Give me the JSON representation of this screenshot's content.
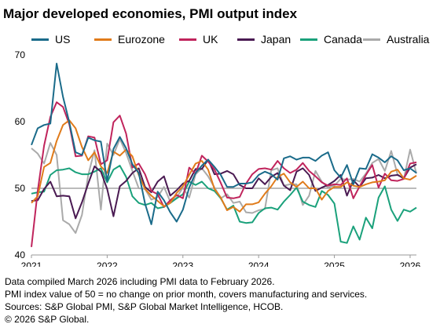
{
  "title": "Major developed economies, PMI output index",
  "notes": [
    "Data compiled March 2026 including PMI data to February 2026.",
    "PMI index value of 50 = no change on prior month, covers manufacturing and services.",
    "Sources: S&P Global PMI, S&P Global Market Intelligence, HCOB.",
    "© 2026 S&P Global."
  ],
  "chart_data": {
    "type": "line",
    "title": "Major developed economies, PMI output index",
    "xlabel": "",
    "ylabel": "",
    "ylim": [
      40,
      70
    ],
    "yticks": [
      40,
      50,
      60,
      70
    ],
    "xticks": [
      "2021",
      "2022",
      "2023",
      "2024",
      "2025",
      "2026"
    ],
    "x_start": "2021-01",
    "x_end": "2026-02",
    "reference_line": 50,
    "grid": false,
    "legend_position": "top",
    "series": [
      {
        "name": "US",
        "color": "#1a6b8a",
        "values": [
          56.5,
          59.0,
          59.5,
          59.7,
          68.7,
          63.7,
          59.9,
          55.4,
          55.0,
          57.6,
          57.2,
          57.0,
          51.1,
          55.9,
          57.7,
          56.0,
          53.6,
          52.3,
          47.7,
          44.6,
          49.5,
          48.2,
          46.4,
          45.0,
          46.8,
          50.1,
          52.3,
          53.4,
          54.3,
          53.2,
          52.0,
          50.2,
          50.2,
          50.7,
          50.7,
          50.9,
          52.0,
          52.5,
          52.1,
          51.3,
          54.5,
          54.8,
          54.3,
          54.6,
          54.6,
          54.1,
          54.9,
          55.4,
          52.7,
          51.6,
          53.5,
          50.6,
          53.0,
          52.9,
          55.1,
          54.6,
          53.9,
          54.8,
          54.2,
          52.7,
          53.0,
          52.3
        ]
      },
      {
        "name": "Eurozone",
        "color": "#e07b1a",
        "values": [
          47.8,
          48.8,
          53.2,
          53.8,
          57.1,
          59.5,
          60.2,
          59.0,
          56.2,
          54.2,
          55.4,
          53.3,
          52.3,
          55.5,
          54.9,
          55.8,
          54.8,
          52.0,
          49.9,
          48.9,
          48.1,
          47.3,
          47.8,
          49.3,
          50.3,
          52.0,
          53.7,
          54.1,
          52.8,
          49.9,
          48.6,
          46.7,
          47.2,
          46.5,
          47.6,
          47.6,
          47.9,
          49.2,
          50.3,
          51.7,
          52.2,
          50.9,
          50.2,
          51.0,
          50.0,
          50.0,
          48.3,
          49.6,
          50.2,
          50.2,
          50.9,
          50.4,
          50.2,
          50.6,
          50.9,
          51.0,
          51.2,
          52.5,
          52.8,
          51.5,
          51.3,
          51.9
        ]
      },
      {
        "name": "UK",
        "color": "#c0245c",
        "values": [
          41.2,
          49.6,
          56.4,
          60.7,
          62.9,
          62.2,
          59.6,
          54.8,
          54.9,
          57.8,
          57.6,
          53.6,
          54.2,
          59.9,
          60.9,
          58.2,
          53.1,
          53.7,
          52.1,
          49.6,
          49.1,
          47.2,
          48.2,
          49.0,
          48.5,
          53.1,
          52.2,
          54.9,
          54.0,
          52.8,
          50.8,
          48.6,
          48.5,
          48.7,
          50.7,
          52.1,
          52.9,
          53.0,
          52.8,
          54.1,
          53.0,
          52.3,
          52.8,
          53.8,
          52.6,
          51.8,
          50.9,
          50.4,
          50.6,
          50.5,
          51.5,
          48.5,
          50.3,
          52.0,
          53.5,
          50.1,
          52.2,
          51.2,
          51.1,
          51.4,
          53.7,
          53.9
        ]
      },
      {
        "name": "Japan",
        "color": "#4a1a52",
        "values": [
          48.1,
          48.2,
          49.9,
          51.0,
          48.8,
          48.9,
          48.8,
          45.5,
          47.9,
          50.7,
          53.3,
          52.5,
          49.9,
          45.8,
          50.3,
          51.1,
          52.3,
          53.0,
          50.2,
          49.4,
          51.0,
          51.8,
          48.9,
          49.7,
          50.7,
          51.1,
          52.9,
          52.9,
          54.3,
          52.1,
          52.2,
          52.6,
          52.1,
          50.5,
          50.0,
          50.0,
          51.5,
          50.6,
          51.7,
          52.3,
          50.4,
          49.7,
          52.5,
          53.0,
          52.0,
          49.6,
          50.1,
          50.5,
          51.1,
          52.0,
          48.9,
          51.2,
          50.2,
          51.5,
          51.6,
          52.0,
          51.5,
          51.9,
          52.0,
          51.5,
          53.1,
          53.6
        ]
      },
      {
        "name": "Canada",
        "color": "#1aa17b",
        "values": [
          49.2,
          49.4,
          49.5,
          52.0,
          52.7,
          52.8,
          53.0,
          52.4,
          52.1,
          52.1,
          52.5,
          53.0,
          50.9,
          52.8,
          53.4,
          51.7,
          48.8,
          47.8,
          47.5,
          47.8,
          47.0,
          47.2,
          47.8,
          48.5,
          49.1,
          51.0,
          50.5,
          51.0,
          50.0,
          49.6,
          48.5,
          46.8,
          47.4,
          45.0,
          44.8,
          44.9,
          46.3,
          47.0,
          47.1,
          46.8,
          48.0,
          49.0,
          50.1,
          48.0,
          47.5,
          47.2,
          49.6,
          49.0,
          47.7,
          42.0,
          41.8,
          44.3,
          42.3,
          45.6,
          44.0,
          48.6,
          50.3,
          46.8,
          45.1,
          46.8,
          46.5,
          47.1
        ]
      },
      {
        "name": "Australia",
        "color": "#aaaaaa",
        "values": [
          56.0,
          55.2,
          53.7,
          56.8,
          55.0,
          45.2,
          44.6,
          43.3,
          46.0,
          52.0,
          55.7,
          46.8,
          56.7,
          55.0,
          57.4,
          55.3,
          52.6,
          50.0,
          49.9,
          48.3,
          48.7,
          50.2,
          48.0,
          48.6,
          50.1,
          48.6,
          52.1,
          53.0,
          51.8,
          50.1,
          48.5,
          49.1,
          47.8,
          48.0,
          46.4,
          46.3,
          46.7,
          46.9,
          52.7,
          53.0,
          50.4,
          50.6,
          50.6,
          47.5,
          48.9,
          52.6,
          51.0,
          50.1,
          50.4,
          51.4,
          51.3,
          51.4,
          51.0,
          52.2,
          53.8,
          54.4,
          52.6,
          55.6,
          52.1,
          51.4,
          55.8,
          52.2
        ]
      }
    ]
  }
}
